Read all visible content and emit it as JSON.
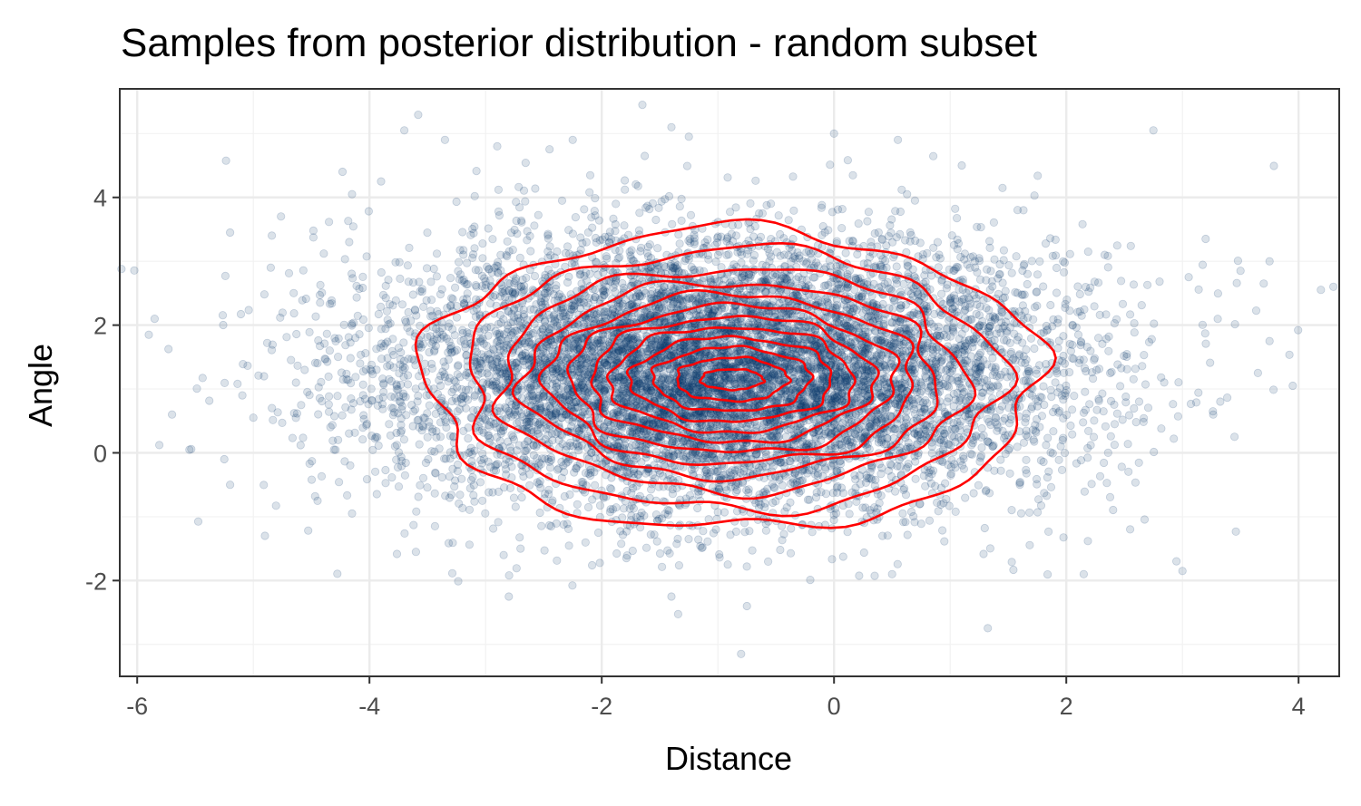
{
  "chart_data": {
    "type": "scatter",
    "title": "Samples from posterior distribution - random subset",
    "xlabel": "Distance",
    "ylabel": "Angle",
    "xlim": [
      -6.15,
      4.35
    ],
    "ylim": [
      -3.5,
      5.7
    ],
    "x_ticks": [
      -6,
      -4,
      -2,
      0,
      2,
      4
    ],
    "y_ticks": [
      -2,
      0,
      2,
      4
    ],
    "x_tick_labels": [
      "-6",
      "-4",
      "-2",
      "0",
      "2",
      "4"
    ],
    "y_tick_labels": [
      "-2",
      "0",
      "2",
      "4"
    ],
    "x_minor": [
      -5,
      -3,
      -1,
      1,
      3
    ],
    "y_minor": [
      -3,
      -1,
      1,
      3,
      5
    ],
    "grid": true,
    "legend": "none",
    "series": [
      {
        "kind": "points",
        "color": "#0b3a6e",
        "opacity": 0.15,
        "distribution": {
          "x_center": -0.95,
          "x_sd": 1.45,
          "y_center": 1.25,
          "y_sd": 1.05,
          "count": 9000
        },
        "outliers": [
          [
            -5.85,
            2.1
          ],
          [
            -5.9,
            1.85
          ],
          [
            -5.2,
            3.45
          ],
          [
            -5.55,
            0.05
          ],
          [
            -5.25,
            -0.1
          ],
          [
            -5.2,
            -0.5
          ],
          [
            -5.0,
            0.55
          ],
          [
            -4.9,
            -1.3
          ],
          [
            -4.85,
            2.9
          ],
          [
            -4.15,
            4.05
          ],
          [
            -3.9,
            4.25
          ],
          [
            -3.7,
            5.05
          ],
          [
            -3.35,
            4.9
          ],
          [
            -2.9,
            4.8
          ],
          [
            -2.25,
            4.9
          ],
          [
            -1.65,
            5.45
          ],
          [
            -1.4,
            5.1
          ],
          [
            -1.25,
            4.95
          ],
          [
            0.55,
            4.9
          ],
          [
            0.0,
            5.0
          ],
          [
            -0.8,
            -3.15
          ],
          [
            -0.75,
            -2.4
          ],
          [
            -1.4,
            -2.25
          ],
          [
            -2.8,
            -2.25
          ],
          [
            -3.6,
            -1.55
          ],
          [
            -4.15,
            -0.95
          ],
          [
            2.75,
            5.05
          ],
          [
            2.15,
            -1.9
          ],
          [
            3.0,
            -1.85
          ],
          [
            3.5,
            2.85
          ],
          [
            3.7,
            2.65
          ],
          [
            3.75,
            3.0
          ],
          [
            3.75,
            1.75
          ],
          [
            3.65,
            1.25
          ],
          [
            3.95,
            1.05
          ],
          [
            3.2,
            3.35
          ],
          [
            0.5,
            -1.9
          ],
          [
            -5.7,
            0.6
          ],
          [
            1.1,
            4.5
          ],
          [
            4.3,
            2.6
          ]
        ]
      },
      {
        "kind": "density-contours",
        "color": "#ff0000",
        "center": [
          -0.88,
          1.15
        ],
        "levels": [
          {
            "rx": 2.65,
            "ry": 2.35
          },
          {
            "rx": 2.3,
            "ry": 2.05
          },
          {
            "rx": 2.0,
            "ry": 1.75
          },
          {
            "rx": 1.78,
            "ry": 1.52
          },
          {
            "rx": 1.58,
            "ry": 1.33
          },
          {
            "rx": 1.4,
            "ry": 1.15
          },
          {
            "rx": 1.22,
            "ry": 0.98
          },
          {
            "rx": 1.05,
            "ry": 0.82
          },
          {
            "rx": 0.87,
            "ry": 0.66
          },
          {
            "rx": 0.68,
            "ry": 0.5
          },
          {
            "rx": 0.48,
            "ry": 0.34
          },
          {
            "rx": 0.27,
            "ry": 0.16
          }
        ]
      }
    ]
  }
}
